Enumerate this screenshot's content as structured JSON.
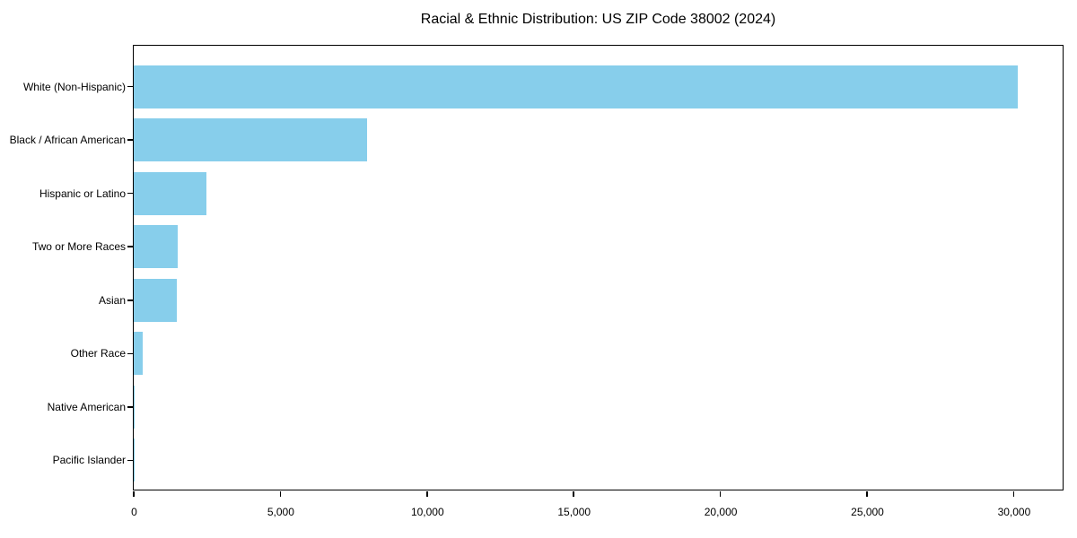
{
  "title": "Racial & Ethnic Distribution: US ZIP Code 38002 (2024)",
  "chart_data": {
    "type": "bar",
    "orientation": "horizontal",
    "title": "Racial & Ethnic Distribution: US ZIP Code 38002 (2024)",
    "xlabel": "",
    "ylabel": "",
    "categories": [
      "White (Non-Hispanic)",
      "Black / African American",
      "Hispanic or Latino",
      "Two or More Races",
      "Asian",
      "Other Race",
      "Native American",
      "Pacific Islander"
    ],
    "values": [
      30150,
      7950,
      2480,
      1500,
      1460,
      320,
      30,
      10
    ],
    "xlim": [
      0,
      31670
    ],
    "x_ticks": [
      0,
      5000,
      10000,
      15000,
      20000,
      25000,
      30000
    ],
    "x_tick_labels": [
      "0",
      "5,000",
      "10,000",
      "15,000",
      "20,000",
      "25,000",
      "30,000"
    ],
    "bar_color": "#87CEEB",
    "axis_color": "#000000",
    "text_color": "#000000",
    "grid": false,
    "legend": null
  }
}
